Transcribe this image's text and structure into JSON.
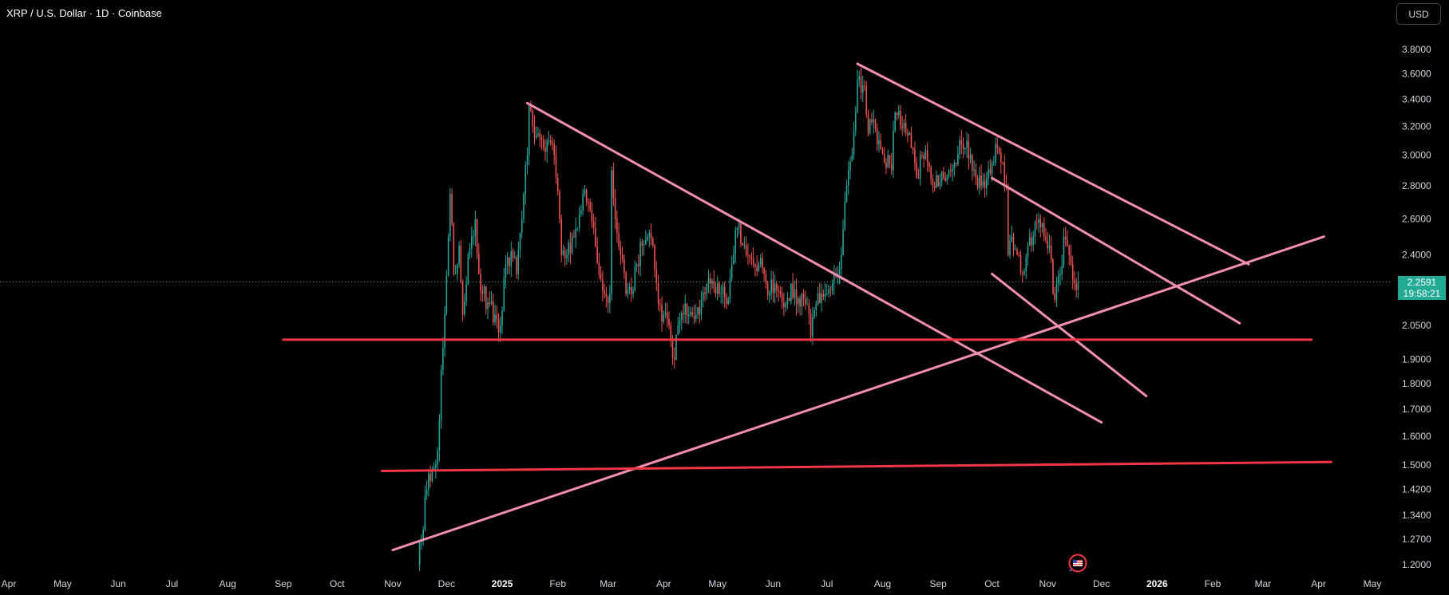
{
  "header": {
    "title": "XRP / U.S. Dollar · 1D · Coinbase"
  },
  "currency_button": "USD",
  "last_price": {
    "value": "2.2591",
    "countdown": "19:58:21",
    "color": "#22ab94"
  },
  "colors": {
    "up": "#26a69a",
    "down": "#ef5350",
    "trendline_pink": "#f48fb1",
    "horizontal_red": "#f23645",
    "background": "#000000",
    "axis_text": "#d1d4dc"
  },
  "chart_data": {
    "type": "line",
    "title": "XRP / U.S. Dollar · 1D · Coinbase",
    "chart_style": "candlestick",
    "y_scale": "log",
    "ylim": [
      1.18,
      3.98
    ],
    "x_range": [
      "2024-04-01",
      "2026-05-20"
    ],
    "y_ticks": [
      3.8,
      3.6,
      3.4,
      3.2,
      3.0,
      2.8,
      2.6,
      2.4,
      2.05,
      1.9,
      1.8,
      1.7,
      1.6,
      1.5,
      1.42,
      1.34,
      1.27,
      1.2
    ],
    "y_tick_labels": [
      "3.8000",
      "3.6000",
      "3.4000",
      "3.2000",
      "3.0000",
      "2.8000",
      "2.6000",
      "2.4000",
      "2.0500",
      "1.9000",
      "1.8000",
      "1.7000",
      "1.6000",
      "1.5000",
      "1.4200",
      "1.3400",
      "1.2700",
      "1.2000"
    ],
    "x_ticks": [
      {
        "date": "2024-04-01",
        "label": "Apr"
      },
      {
        "date": "2024-05-01",
        "label": "May"
      },
      {
        "date": "2024-06-01",
        "label": "Jun"
      },
      {
        "date": "2024-07-01",
        "label": "Jul"
      },
      {
        "date": "2024-08-01",
        "label": "Aug"
      },
      {
        "date": "2024-09-01",
        "label": "Sep"
      },
      {
        "date": "2024-10-01",
        "label": "Oct"
      },
      {
        "date": "2024-11-01",
        "label": "Nov"
      },
      {
        "date": "2024-12-01",
        "label": "Dec"
      },
      {
        "date": "2025-01-01",
        "label": "2025"
      },
      {
        "date": "2025-02-01",
        "label": "Feb"
      },
      {
        "date": "2025-03-01",
        "label": "Mar"
      },
      {
        "date": "2025-04-01",
        "label": "Apr"
      },
      {
        "date": "2025-05-01",
        "label": "May"
      },
      {
        "date": "2025-06-01",
        "label": "Jun"
      },
      {
        "date": "2025-07-01",
        "label": "Jul"
      },
      {
        "date": "2025-08-01",
        "label": "Aug"
      },
      {
        "date": "2025-09-01",
        "label": "Sep"
      },
      {
        "date": "2025-10-01",
        "label": "Oct"
      },
      {
        "date": "2025-11-01",
        "label": "Nov"
      },
      {
        "date": "2025-12-01",
        "label": "Dec"
      },
      {
        "date": "2026-01-01",
        "label": "2026"
      },
      {
        "date": "2026-02-01",
        "label": "Feb"
      },
      {
        "date": "2026-03-01",
        "label": "Mar"
      },
      {
        "date": "2026-04-01",
        "label": "Apr"
      },
      {
        "date": "2026-05-01",
        "label": "May"
      }
    ],
    "last_price": 2.2591,
    "series": [
      {
        "points": [
          [
            "2024-11-15",
            1.2
          ],
          [
            "2024-11-17",
            1.27
          ],
          [
            "2024-11-20",
            1.42
          ],
          [
            "2024-11-23",
            1.48
          ],
          [
            "2024-11-26",
            1.55
          ],
          [
            "2024-11-29",
            1.95
          ],
          [
            "2024-12-02",
            2.5
          ],
          [
            "2024-12-03",
            2.75
          ],
          [
            "2024-12-05",
            2.3
          ],
          [
            "2024-12-08",
            2.45
          ],
          [
            "2024-12-10",
            2.1
          ],
          [
            "2024-12-13",
            2.4
          ],
          [
            "2024-12-15",
            2.5
          ],
          [
            "2024-12-17",
            2.6
          ],
          [
            "2024-12-19",
            2.3
          ],
          [
            "2024-12-21",
            2.2
          ],
          [
            "2024-12-25",
            2.15
          ],
          [
            "2024-12-28",
            2.1
          ],
          [
            "2024-12-31",
            2.05
          ],
          [
            "2025-01-03",
            2.35
          ],
          [
            "2025-01-06",
            2.42
          ],
          [
            "2025-01-09",
            2.3
          ],
          [
            "2025-01-12",
            2.6
          ],
          [
            "2025-01-15",
            3.0
          ],
          [
            "2025-01-16",
            3.35
          ],
          [
            "2025-01-18",
            3.2
          ],
          [
            "2025-01-21",
            3.15
          ],
          [
            "2025-01-24",
            3.05
          ],
          [
            "2025-01-27",
            3.1
          ],
          [
            "2025-01-30",
            3.0
          ],
          [
            "2025-02-02",
            2.6
          ],
          [
            "2025-02-03",
            2.4
          ],
          [
            "2025-02-06",
            2.4
          ],
          [
            "2025-02-09",
            2.5
          ],
          [
            "2025-02-12",
            2.55
          ],
          [
            "2025-02-15",
            2.75
          ],
          [
            "2025-02-18",
            2.7
          ],
          [
            "2025-02-21",
            2.55
          ],
          [
            "2025-02-24",
            2.3
          ],
          [
            "2025-02-27",
            2.2
          ],
          [
            "2025-03-02",
            2.2
          ],
          [
            "2025-03-03",
            2.9
          ],
          [
            "2025-03-05",
            2.6
          ],
          [
            "2025-03-08",
            2.4
          ],
          [
            "2025-03-11",
            2.2
          ],
          [
            "2025-03-14",
            2.2
          ],
          [
            "2025-03-17",
            2.35
          ],
          [
            "2025-03-20",
            2.45
          ],
          [
            "2025-03-23",
            2.5
          ],
          [
            "2025-03-26",
            2.45
          ],
          [
            "2025-03-29",
            2.15
          ],
          [
            "2025-04-01",
            2.1
          ],
          [
            "2025-04-04",
            2.05
          ],
          [
            "2025-04-07",
            1.9
          ],
          [
            "2025-04-09",
            2.05
          ],
          [
            "2025-04-12",
            2.1
          ],
          [
            "2025-04-15",
            2.1
          ],
          [
            "2025-04-18",
            2.08
          ],
          [
            "2025-04-21",
            2.1
          ],
          [
            "2025-04-24",
            2.2
          ],
          [
            "2025-04-27",
            2.25
          ],
          [
            "2025-04-30",
            2.2
          ],
          [
            "2025-05-03",
            2.2
          ],
          [
            "2025-05-06",
            2.15
          ],
          [
            "2025-05-09",
            2.35
          ],
          [
            "2025-05-12",
            2.55
          ],
          [
            "2025-05-15",
            2.45
          ],
          [
            "2025-05-18",
            2.4
          ],
          [
            "2025-05-21",
            2.35
          ],
          [
            "2025-05-24",
            2.35
          ],
          [
            "2025-05-27",
            2.3
          ],
          [
            "2025-05-30",
            2.2
          ],
          [
            "2025-06-02",
            2.25
          ],
          [
            "2025-06-05",
            2.2
          ],
          [
            "2025-06-08",
            2.15
          ],
          [
            "2025-06-11",
            2.25
          ],
          [
            "2025-06-14",
            2.15
          ],
          [
            "2025-06-17",
            2.2
          ],
          [
            "2025-06-20",
            2.15
          ],
          [
            "2025-06-22",
            2.0
          ],
          [
            "2025-06-25",
            2.15
          ],
          [
            "2025-06-28",
            2.2
          ],
          [
            "2025-07-01",
            2.2
          ],
          [
            "2025-07-04",
            2.25
          ],
          [
            "2025-07-07",
            2.3
          ],
          [
            "2025-07-09",
            2.4
          ],
          [
            "2025-07-11",
            2.7
          ],
          [
            "2025-07-13",
            2.9
          ],
          [
            "2025-07-15",
            3.0
          ],
          [
            "2025-07-17",
            3.3
          ],
          [
            "2025-07-18",
            3.55
          ],
          [
            "2025-07-20",
            3.45
          ],
          [
            "2025-07-22",
            3.5
          ],
          [
            "2025-07-24",
            3.15
          ],
          [
            "2025-07-27",
            3.25
          ],
          [
            "2025-07-30",
            3.1
          ],
          [
            "2025-08-02",
            2.95
          ],
          [
            "2025-08-04",
            3.0
          ],
          [
            "2025-08-06",
            2.9
          ],
          [
            "2025-08-08",
            3.3
          ],
          [
            "2025-08-11",
            3.2
          ],
          [
            "2025-08-14",
            3.15
          ],
          [
            "2025-08-17",
            3.05
          ],
          [
            "2025-08-20",
            2.85
          ],
          [
            "2025-08-23",
            3.0
          ],
          [
            "2025-08-26",
            2.95
          ],
          [
            "2025-08-29",
            2.8
          ],
          [
            "2025-09-01",
            2.8
          ],
          [
            "2025-09-04",
            2.85
          ],
          [
            "2025-09-07",
            2.9
          ],
          [
            "2025-09-10",
            2.95
          ],
          [
            "2025-09-13",
            3.1
          ],
          [
            "2025-09-16",
            3.05
          ],
          [
            "2025-09-19",
            3.0
          ],
          [
            "2025-09-22",
            2.85
          ],
          [
            "2025-09-25",
            2.8
          ],
          [
            "2025-09-28",
            2.85
          ],
          [
            "2025-10-01",
            2.95
          ],
          [
            "2025-10-04",
            3.05
          ],
          [
            "2025-10-07",
            2.95
          ],
          [
            "2025-10-09",
            2.8
          ],
          [
            "2025-10-10",
            2.4
          ],
          [
            "2025-10-12",
            2.5
          ],
          [
            "2025-10-15",
            2.4
          ],
          [
            "2025-10-18",
            2.3
          ],
          [
            "2025-10-21",
            2.45
          ],
          [
            "2025-10-24",
            2.5
          ],
          [
            "2025-10-27",
            2.6
          ],
          [
            "2025-10-30",
            2.5
          ],
          [
            "2025-11-02",
            2.45
          ],
          [
            "2025-11-04",
            2.2
          ],
          [
            "2025-11-06",
            2.25
          ],
          [
            "2025-11-08",
            2.3
          ],
          [
            "2025-11-10",
            2.5
          ],
          [
            "2025-11-12",
            2.45
          ],
          [
            "2025-11-14",
            2.35
          ],
          [
            "2025-11-16",
            2.25
          ],
          [
            "2025-11-18",
            2.2591
          ]
        ]
      }
    ],
    "drawings": [
      {
        "kind": "trendline",
        "color": "#f48fb1",
        "from": [
          "2025-01-15",
          3.37
        ],
        "to": [
          "2025-12-01",
          1.65
        ]
      },
      {
        "kind": "trendline",
        "color": "#f48fb1",
        "from": [
          "2025-07-18",
          3.68
        ],
        "to": [
          "2026-02-21",
          2.35
        ]
      },
      {
        "kind": "trendline",
        "color": "#f48fb1",
        "from": [
          "2025-10-01",
          2.85
        ],
        "to": [
          "2026-02-16",
          2.06
        ]
      },
      {
        "kind": "trendline",
        "color": "#f48fb1",
        "from": [
          "2025-10-01",
          2.3
        ],
        "to": [
          "2025-12-26",
          1.75
        ]
      },
      {
        "kind": "trendline",
        "color": "#f48fb1",
        "from": [
          "2024-11-01",
          1.24
        ],
        "to": [
          "2026-04-04",
          2.5
        ]
      },
      {
        "kind": "horizontal",
        "color": "#f23645",
        "from": [
          "2024-09-01",
          1.985
        ],
        "to": [
          "2026-03-28",
          1.985
        ]
      },
      {
        "kind": "trendline",
        "color": "#f23645",
        "from": [
          "2024-10-26",
          1.48
        ],
        "to": [
          "2026-04-08",
          1.51
        ]
      }
    ]
  }
}
